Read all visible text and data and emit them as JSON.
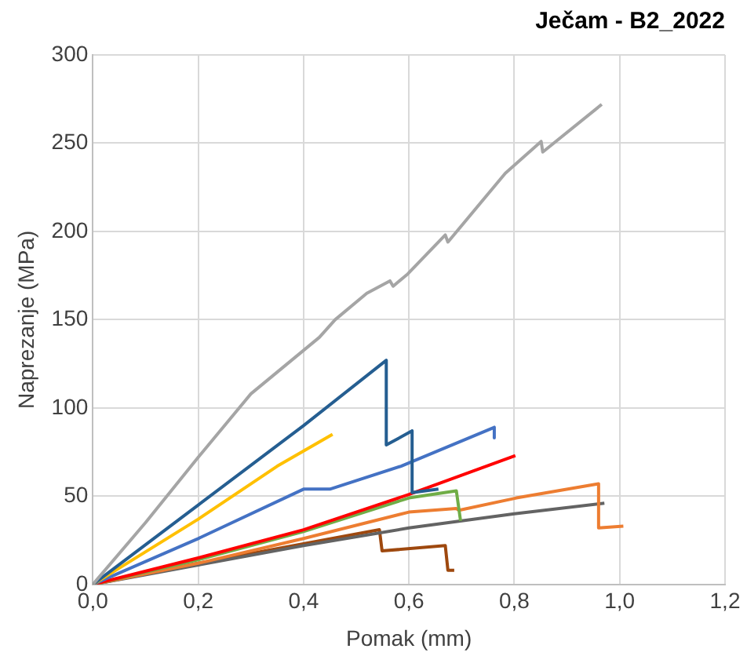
{
  "chart_data": {
    "type": "line",
    "title": "Ječam - B2_2022",
    "xlabel": "Pomak (mm)",
    "ylabel": "Naprezanje (MPa)",
    "xlim": [
      0,
      1.2
    ],
    "xticks": [
      {
        "value": 0,
        "label": "0,0"
      },
      {
        "value": 0.2,
        "label": "0,2"
      },
      {
        "value": 0.4,
        "label": "0,4"
      },
      {
        "value": 0.6,
        "label": "0,6"
      },
      {
        "value": 0.8,
        "label": "0,8"
      },
      {
        "value": 1,
        "label": "1,0"
      },
      {
        "value": 1.2,
        "label": "1,2"
      }
    ],
    "ylim": [
      0,
      300
    ],
    "yticks": [
      0,
      50,
      100,
      150,
      200,
      250,
      300
    ],
    "grid": true,
    "legend": false,
    "marker": "none",
    "line_style": "solid",
    "series": [
      {
        "color": "#a5a5a5",
        "x": [
          0,
          0.1,
          0.2,
          0.3,
          0.43,
          0.46,
          0.52,
          0.564,
          0.57,
          0.598,
          0.669,
          0.674,
          0.783,
          0.851,
          0.854,
          0.966
        ],
        "values": [
          0,
          35,
          72,
          108,
          140,
          150,
          165,
          172,
          169,
          176,
          198,
          194,
          233,
          251,
          245,
          272
        ]
      },
      {
        "color": "#255e91",
        "x": [
          0,
          0.2,
          0.4,
          0.557,
          0.557,
          0.606,
          0.606,
          0.656
        ],
        "values": [
          0,
          45,
          90,
          127,
          79,
          87,
          52,
          54
        ]
      },
      {
        "color": "#ffc000",
        "x": [
          0,
          0.2,
          0.35,
          0.455
        ],
        "values": [
          0,
          37,
          67,
          85
        ]
      },
      {
        "color": "#4472c4",
        "x": [
          0,
          0.2,
          0.4,
          0.45,
          0.585,
          0.762,
          0.762
        ],
        "values": [
          0,
          26,
          54,
          54,
          67,
          89,
          83
        ]
      },
      {
        "color": "#ff0000",
        "x": [
          0,
          0.2,
          0.4,
          0.6,
          0.802
        ],
        "values": [
          0,
          15,
          31,
          51,
          73
        ]
      },
      {
        "color": "#70ad47",
        "x": [
          0,
          0.2,
          0.4,
          0.6,
          0.69,
          0.698
        ],
        "values": [
          0,
          14,
          30,
          49,
          53,
          36
        ]
      },
      {
        "color": "#ed7d31",
        "x": [
          0,
          0.2,
          0.4,
          0.6,
          0.69,
          0.695,
          0.804,
          0.96,
          0.96,
          1.007
        ],
        "values": [
          0,
          12,
          26,
          41,
          43,
          42,
          49,
          57,
          32,
          33
        ]
      },
      {
        "color": "#636363",
        "x": [
          0,
          0.2,
          0.4,
          0.6,
          0.8,
          0.971
        ],
        "values": [
          0,
          11,
          22,
          32,
          40,
          46
        ]
      },
      {
        "color": "#9e480e",
        "x": [
          0,
          0.2,
          0.4,
          0.544,
          0.549,
          0.669,
          0.674,
          0.686
        ],
        "values": [
          0,
          12,
          23,
          31,
          19,
          22,
          8,
          8
        ]
      }
    ]
  }
}
